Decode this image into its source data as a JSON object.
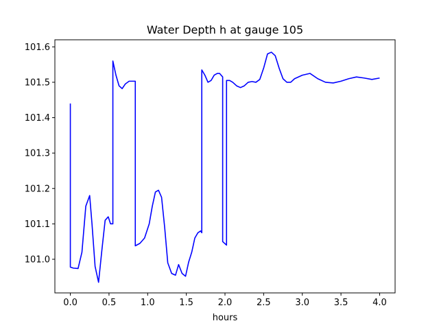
{
  "chart_data": {
    "type": "line",
    "title": "Water Depth h at gauge 105",
    "xlabel": "hours",
    "ylabel": "",
    "xlim": [
      -0.2,
      4.2
    ],
    "ylim": [
      100.905,
      101.62
    ],
    "xticks": [
      0.0,
      0.5,
      1.0,
      1.5,
      2.0,
      2.5,
      3.0,
      3.5,
      4.0
    ],
    "xtick_labels": [
      "0.0",
      "0.5",
      "1.0",
      "1.5",
      "2.0",
      "2.5",
      "3.0",
      "3.5",
      "4.0"
    ],
    "yticks": [
      101.0,
      101.1,
      101.2,
      101.3,
      101.4,
      101.5,
      101.6
    ],
    "ytick_labels": [
      "101.0",
      "101.1",
      "101.2",
      "101.3",
      "101.4",
      "101.5",
      "101.6"
    ],
    "grid": false,
    "series": [
      {
        "name": "",
        "color": "#0000ff",
        "x": [
          0.0,
          0.0,
          0.04,
          0.1,
          0.15,
          0.2,
          0.25,
          0.28,
          0.32,
          0.365,
          0.41,
          0.45,
          0.49,
          0.52,
          0.55,
          0.55,
          0.59,
          0.63,
          0.67,
          0.71,
          0.76,
          0.8,
          0.84,
          0.84,
          0.9,
          0.96,
          1.02,
          1.06,
          1.1,
          1.14,
          1.18,
          1.22,
          1.26,
          1.31,
          1.36,
          1.4,
          1.445,
          1.49,
          1.53,
          1.57,
          1.61,
          1.65,
          1.685,
          1.7,
          1.7,
          1.74,
          1.78,
          1.82,
          1.86,
          1.9,
          1.93,
          1.97,
          1.97,
          2.02,
          2.02,
          2.06,
          2.1,
          2.15,
          2.2,
          2.25,
          2.3,
          2.35,
          2.4,
          2.45,
          2.5,
          2.55,
          2.6,
          2.65,
          2.7,
          2.75,
          2.8,
          2.85,
          2.9,
          3.0,
          3.1,
          3.2,
          3.3,
          3.4,
          3.5,
          3.6,
          3.7,
          3.8,
          3.9,
          4.0
        ],
        "y": [
          101.44,
          100.978,
          100.975,
          100.974,
          101.02,
          101.15,
          101.18,
          101.1,
          100.98,
          100.935,
          101.03,
          101.11,
          101.12,
          101.1,
          101.1,
          101.56,
          101.52,
          101.49,
          101.482,
          101.495,
          101.503,
          101.503,
          101.503,
          101.038,
          101.045,
          101.06,
          101.1,
          101.15,
          101.19,
          101.195,
          101.175,
          101.09,
          100.99,
          100.96,
          100.955,
          100.985,
          100.96,
          100.952,
          100.992,
          101.02,
          101.06,
          101.075,
          101.08,
          101.075,
          101.535,
          101.52,
          101.5,
          101.505,
          101.52,
          101.525,
          101.525,
          101.515,
          101.05,
          101.04,
          101.505,
          101.505,
          101.5,
          101.49,
          101.485,
          101.49,
          101.5,
          101.502,
          101.5,
          101.508,
          101.54,
          101.58,
          101.585,
          101.575,
          101.54,
          101.51,
          101.5,
          101.5,
          101.51,
          101.52,
          101.525,
          101.51,
          101.5,
          101.498,
          101.503,
          101.51,
          101.515,
          101.512,
          101.508,
          101.512
        ]
      }
    ]
  }
}
